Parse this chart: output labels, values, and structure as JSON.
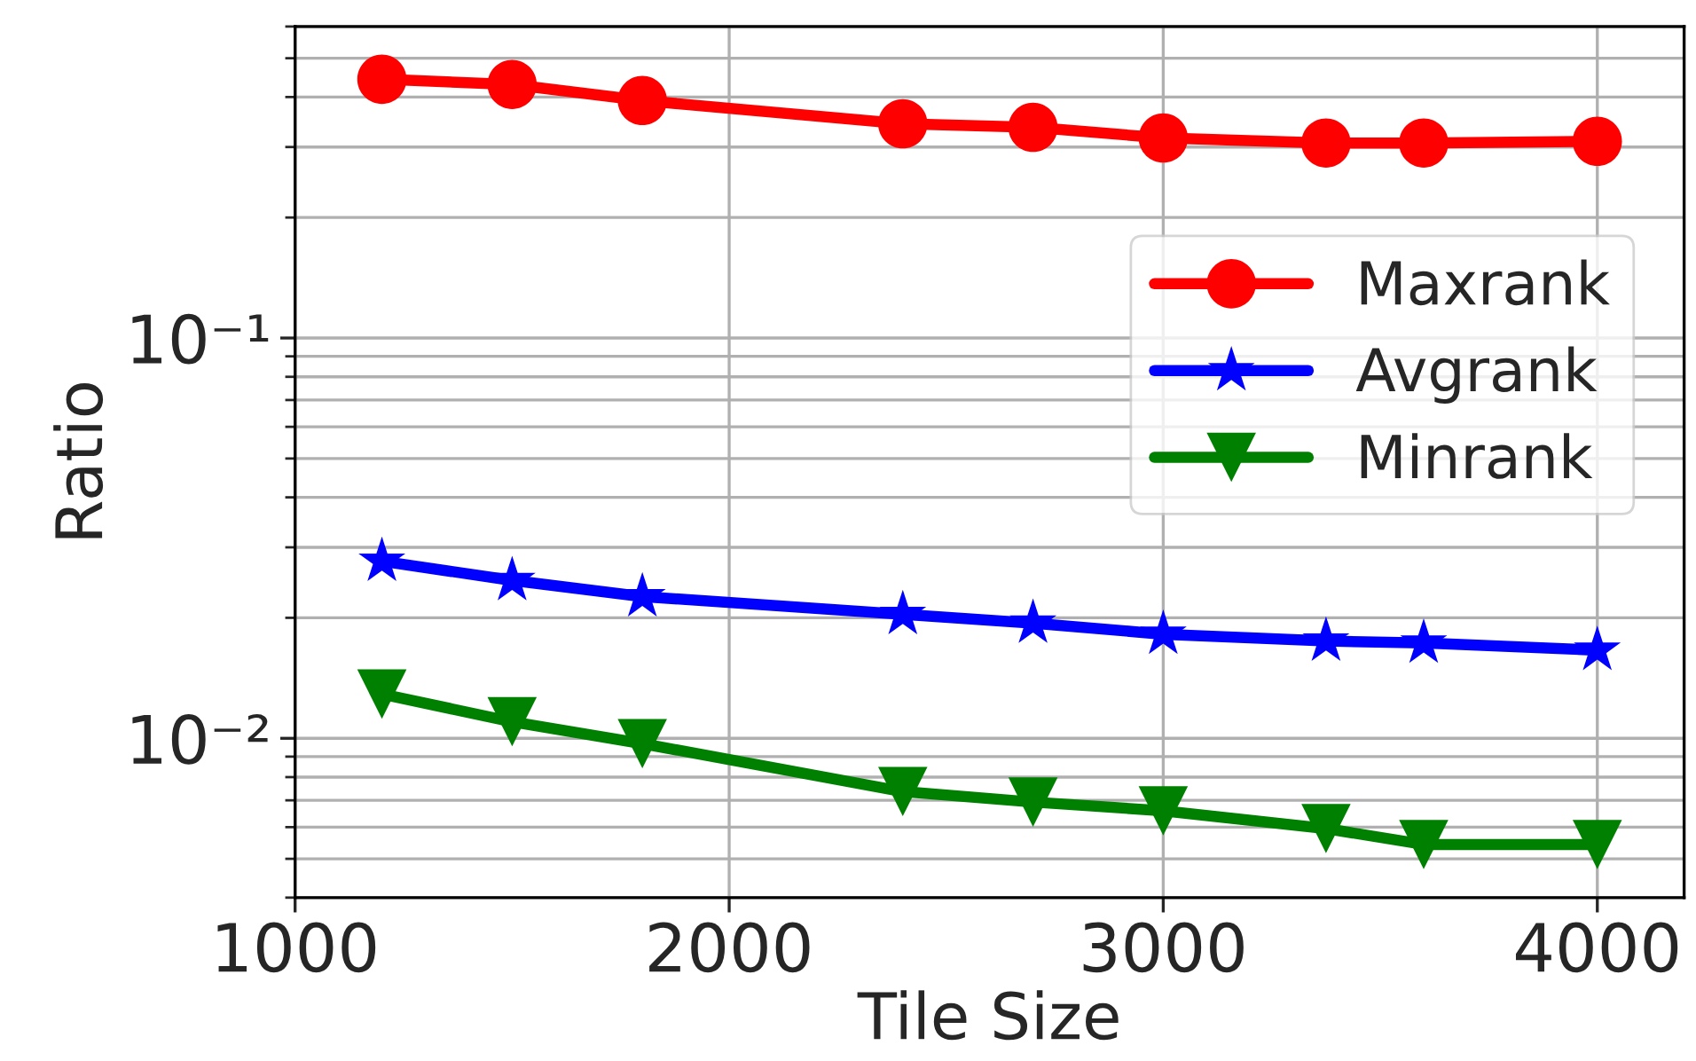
{
  "chart_data": {
    "type": "line",
    "xlabel": "Tile Size",
    "ylabel": "Ratio",
    "log": "y",
    "grid": true,
    "legend": "right",
    "x": [
      1200,
      1500,
      1800,
      2400,
      2700,
      3000,
      3375,
      3600,
      4000
    ],
    "xlim": [
      1000,
      4200
    ],
    "xticks": [
      1000,
      2000,
      3000,
      4000
    ],
    "ylim": [
      0.004,
      0.6
    ],
    "yticks": [
      {
        "value": 0.01,
        "label": "10⁻²"
      },
      {
        "value": 0.1,
        "label": "10⁻¹"
      }
    ],
    "series": [
      {
        "name": "Maxrank",
        "color": "#ff0000",
        "marker": "circle",
        "values": [
          0.443,
          0.43,
          0.392,
          0.343,
          0.336,
          0.316,
          0.307,
          0.307,
          0.31
        ]
      },
      {
        "name": "Avgrank",
        "color": "#0000ff",
        "marker": "star",
        "values": [
          0.0277,
          0.0248,
          0.0226,
          0.0204,
          0.0194,
          0.0182,
          0.0175,
          0.0173,
          0.0166
        ]
      },
      {
        "name": "Minrank",
        "color": "#008000",
        "marker": "triangle",
        "values": [
          0.0129,
          0.011,
          0.0097,
          0.00736,
          0.00693,
          0.00659,
          0.00595,
          0.00543,
          0.00543
        ]
      }
    ]
  }
}
